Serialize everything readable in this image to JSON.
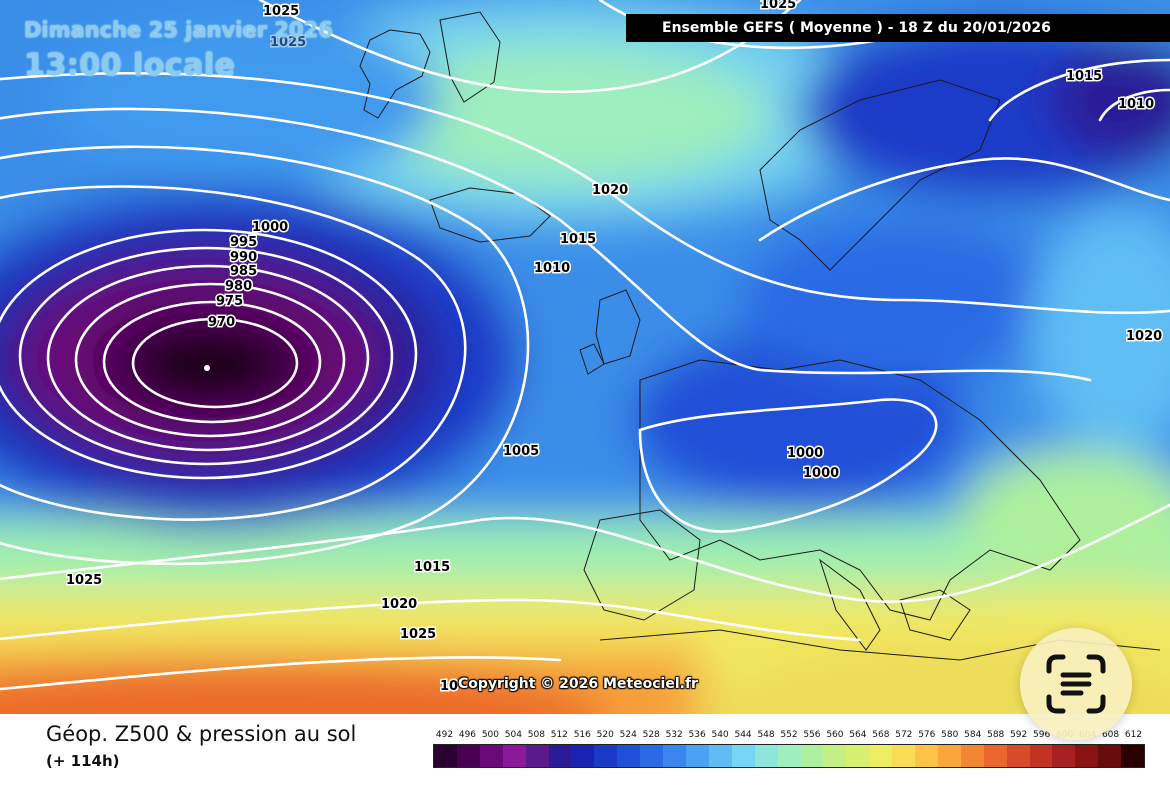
{
  "header": {
    "date": "Dimanche 25 janvier 2026",
    "local_time": "13:00 locale",
    "model_info": "Ensemble GEFS  ( Moyenne )  -  18 Z du 20/01/2026"
  },
  "footer": {
    "title": "Géop. Z500 & pression au sol",
    "forecast_hour": "(+ 114h)",
    "copyright": "Copyright © 2026 Meteociel.fr"
  },
  "legend": {
    "values": [
      "492",
      "496",
      "500",
      "504",
      "508",
      "512",
      "516",
      "520",
      "524",
      "528",
      "532",
      "536",
      "540",
      "544",
      "548",
      "552",
      "556",
      "560",
      "564",
      "568",
      "572",
      "576",
      "580",
      "584",
      "588",
      "592",
      "596",
      "600",
      "604",
      "608",
      "612"
    ],
    "colors": [
      "#2b0033",
      "#4a0050",
      "#6a0a78",
      "#8a1a98",
      "#5a1a8a",
      "#2a1a96",
      "#1a22b4",
      "#1a3ac8",
      "#2050d8",
      "#2a6ae4",
      "#3a86ec",
      "#4aa2f2",
      "#5ebef4",
      "#74d6f2",
      "#8ce6dc",
      "#9eeebe",
      "#aef09e",
      "#c2f084",
      "#d8f070",
      "#eeec60",
      "#f8dc52",
      "#fcc446",
      "#faa63a",
      "#f48632",
      "#ea662c",
      "#d84a28",
      "#c43222",
      "#a82020",
      "#8a1414",
      "#660c0c",
      "#2a0000"
    ]
  },
  "isobar_labels": [
    {
      "text": "1025"
    },
    {
      "text": "1025"
    },
    {
      "text": "1025"
    },
    {
      "text": "1015"
    },
    {
      "text": "1010"
    },
    {
      "text": "1020"
    },
    {
      "text": "1015"
    },
    {
      "text": "1010"
    },
    {
      "text": "1000"
    },
    {
      "text": "995"
    },
    {
      "text": "990"
    },
    {
      "text": "985"
    },
    {
      "text": "980"
    },
    {
      "text": "975"
    },
    {
      "text": "970"
    },
    {
      "text": "1020"
    },
    {
      "text": "1005"
    },
    {
      "text": "1000"
    },
    {
      "text": "1000"
    },
    {
      "text": "1025"
    },
    {
      "text": "1015"
    },
    {
      "text": "1020"
    },
    {
      "text": "1025"
    },
    {
      "text": "10"
    }
  ],
  "colors": {
    "header_bg": "#000000",
    "overlay_text": "#88ccf0",
    "isobar": "#ffffff"
  },
  "icons": {
    "scan": "live-text-scan-icon"
  }
}
